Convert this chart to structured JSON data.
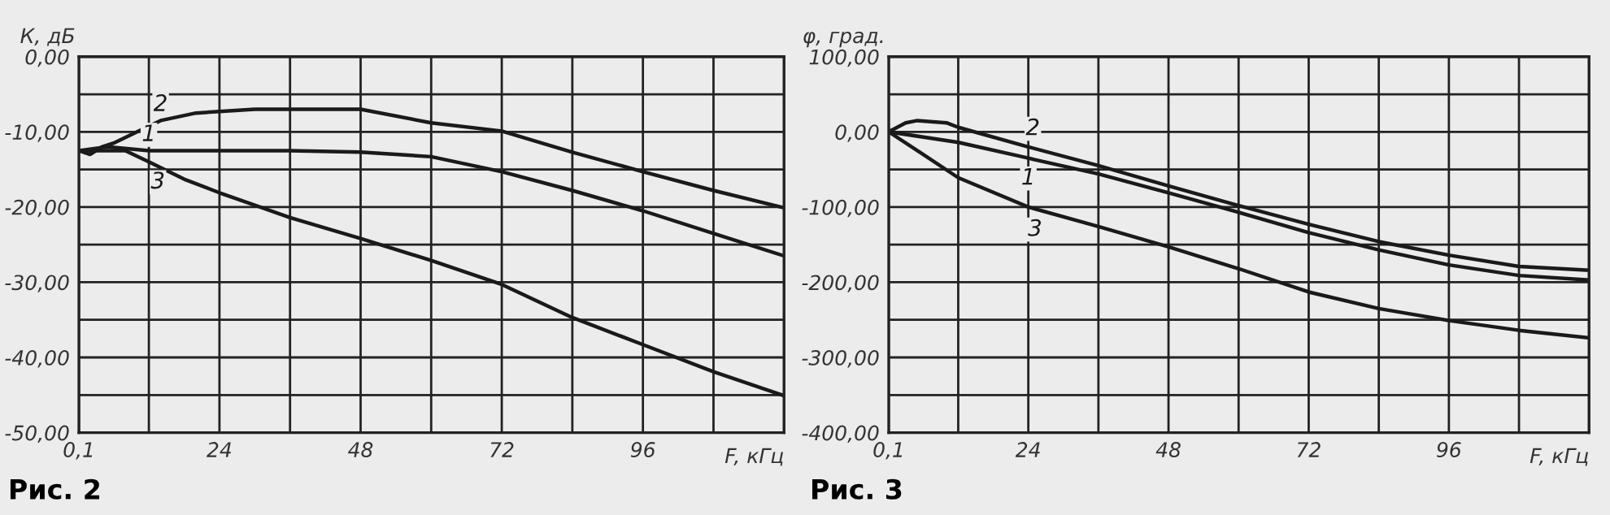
{
  "chart_data": [
    {
      "type": "line",
      "title": "Рис. 2",
      "xlabel": "F, кГц",
      "ylabel": "К, дБ",
      "xlim": [
        0.1,
        120
      ],
      "xticks": [
        {
          "value": 0.1,
          "label": "0,1"
        },
        {
          "value": 12,
          "label": null
        },
        24,
        {
          "value": 36,
          "label": null
        },
        48,
        {
          "value": 60,
          "label": null
        },
        72,
        {
          "value": 84,
          "label": null
        },
        96,
        {
          "value": 108,
          "label": null
        },
        {
          "value": 120,
          "label": null
        }
      ],
      "ylim": [
        -50,
        0
      ],
      "yticks": [
        {
          "value": -50,
          "label": "-50,00"
        },
        {
          "value": -45,
          "label": null
        },
        {
          "value": -40,
          "label": "-40,00"
        },
        {
          "value": -35,
          "label": null
        },
        {
          "value": -30,
          "label": "-30,00"
        },
        {
          "value": -25,
          "label": null
        },
        {
          "value": -20,
          "label": "-20,00"
        },
        {
          "value": -15,
          "label": null
        },
        {
          "value": -10,
          "label": "-10,00"
        },
        {
          "value": -5,
          "label": null
        },
        {
          "value": 0,
          "label": "0,00"
        }
      ],
      "grid": true,
      "series": [
        {
          "name": "1",
          "color": "#1a1a1a",
          "x": [
            0.1,
            5,
            12,
            24,
            36,
            48,
            60,
            72,
            84,
            96,
            108,
            120
          ],
          "values": [
            -12.5,
            -12,
            -12.5,
            -12.5,
            -12.5,
            -12.7,
            -13.3,
            -15.3,
            -17.8,
            -20.5,
            -23.5,
            -26.5
          ]
        },
        {
          "name": "2",
          "color": "#1a1a1a",
          "x": [
            0.1,
            2,
            4,
            6,
            10,
            14,
            20,
            30,
            40,
            48,
            60,
            72,
            84,
            96,
            108,
            120
          ],
          "values": [
            -12.5,
            -13,
            -12,
            -11.5,
            -10,
            -8.5,
            -7.5,
            -7,
            -7,
            -7,
            -8.8,
            -9.9,
            -12.7,
            -15.3,
            -17.8,
            -20.1
          ]
        },
        {
          "name": "3",
          "color": "#1a1a1a",
          "x": [
            0.1,
            8,
            12,
            18,
            24,
            36,
            48,
            60,
            72,
            84,
            96,
            108,
            120
          ],
          "values": [
            -12.5,
            -12.5,
            -14,
            -16.3,
            -18.1,
            -21.4,
            -24.2,
            -27.1,
            -30.3,
            -34.7,
            -38.3,
            -41.9,
            -45.1
          ]
        }
      ],
      "legend": false
    },
    {
      "type": "line",
      "title": "Рис. 3",
      "xlabel": "F, кГц",
      "ylabel": "φ, град.",
      "xlim": [
        0.1,
        120
      ],
      "xticks": [
        {
          "value": 0.1,
          "label": "0,1"
        },
        {
          "value": 12,
          "label": null
        },
        24,
        {
          "value": 36,
          "label": null
        },
        48,
        {
          "value": 60,
          "label": null
        },
        72,
        {
          "value": 84,
          "label": null
        },
        96,
        {
          "value": 108,
          "label": null
        },
        {
          "value": 120,
          "label": null
        }
      ],
      "ylim": [
        -400,
        100
      ],
      "yticks": [
        {
          "value": -400,
          "label": "-400,00"
        },
        {
          "value": -350,
          "label": null
        },
        {
          "value": -300,
          "label": "-300,00"
        },
        {
          "value": -250,
          "label": null
        },
        {
          "value": -200,
          "label": "-200,00"
        },
        {
          "value": -150,
          "label": null
        },
        {
          "value": -100,
          "label": "-100,00"
        },
        {
          "value": -50,
          "label": null
        },
        {
          "value": 0,
          "label": "0,00"
        },
        {
          "value": 50,
          "label": null
        },
        {
          "value": 100,
          "label": "100,00"
        }
      ],
      "grid": true,
      "series": [
        {
          "name": "1",
          "color": "#1a1a1a",
          "x": [
            0.1,
            12,
            24,
            36,
            48,
            60,
            72,
            84,
            96,
            108,
            120
          ],
          "values": [
            0,
            -14,
            -35,
            -56,
            -81,
            -107,
            -134,
            -157,
            -177,
            -191,
            -197
          ]
        },
        {
          "name": "2",
          "color": "#1a1a1a",
          "x": [
            0.1,
            3,
            5,
            10,
            12,
            24,
            36,
            48,
            60,
            72,
            84,
            96,
            108,
            120
          ],
          "values": [
            0,
            12,
            15,
            12,
            6,
            -20,
            -45,
            -72,
            -98,
            -123,
            -146,
            -164,
            -179,
            -184
          ]
        },
        {
          "name": "3",
          "color": "#1a1a1a",
          "x": [
            0.1,
            6,
            12,
            24,
            36,
            48,
            60,
            72,
            84,
            96,
            108,
            120
          ],
          "values": [
            0,
            -30,
            -61,
            -100,
            -126,
            -153,
            -182,
            -213,
            -235,
            -251,
            -264,
            -274
          ]
        }
      ],
      "legend": false
    }
  ]
}
